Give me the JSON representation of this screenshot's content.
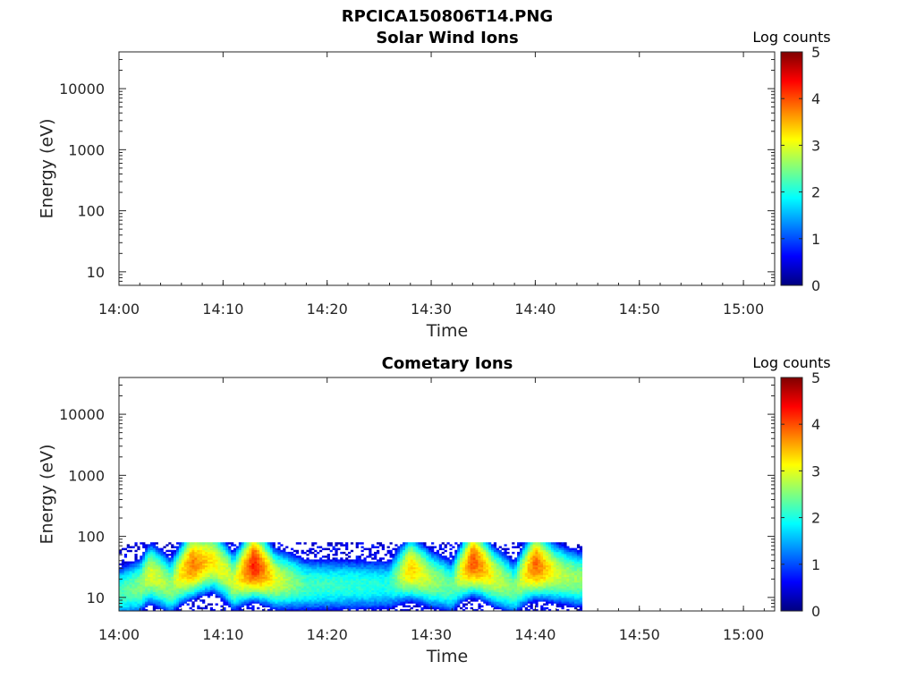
{
  "figure_title": "RPCICA150806T14.PNG",
  "colormap_stops": [
    "#00007f",
    "#0000ff",
    "#007fff",
    "#00ffff",
    "#7fff7f",
    "#ffff00",
    "#ff7f00",
    "#ff0000",
    "#7f0000"
  ],
  "chart_data": [
    {
      "type": "heatmap",
      "title": "Solar Wind Ions",
      "xlabel": "Time",
      "ylabel": "Energy (eV)",
      "yscale": "log",
      "ylim": [
        6,
        40000
      ],
      "xlim": [
        "14:00",
        "15:03"
      ],
      "xticks": [
        "14:00",
        "14:10",
        "14:20",
        "14:30",
        "14:40",
        "14:50",
        "15:00"
      ],
      "yticks": [
        10,
        100,
        1000,
        10000
      ],
      "ytick_labels": [
        "10",
        "100",
        "1000",
        "10000"
      ],
      "colorbar": {
        "label": "Log counts",
        "range": [
          0,
          5
        ],
        "ticks": [
          "0",
          "1",
          "2",
          "3",
          "4",
          "5"
        ]
      },
      "cells": []
    },
    {
      "type": "heatmap",
      "title": "Cometary Ions",
      "xlabel": "Time",
      "ylabel": "Energy (eV)",
      "yscale": "log",
      "ylim": [
        6,
        40000
      ],
      "xlim": [
        "14:00",
        "15:03"
      ],
      "xticks": [
        "14:00",
        "14:10",
        "14:20",
        "14:30",
        "14:40",
        "14:50",
        "15:00"
      ],
      "yticks": [
        10,
        100,
        1000,
        10000
      ],
      "ytick_labels": [
        "10",
        "100",
        "1000",
        "10000"
      ],
      "colorbar": {
        "label": "Log counts",
        "range": [
          0,
          5
        ],
        "ticks": [
          "0",
          "1",
          "2",
          "3",
          "4",
          "5"
        ]
      },
      "data_end": "14:44.5",
      "cells": [
        {
          "t": "14:00",
          "energy_band": [
            6,
            80
          ],
          "peak_energy": 12,
          "peak_log_counts": 2.2
        },
        {
          "t": "14:02",
          "energy_band": [
            6,
            80
          ],
          "peak_energy": 15,
          "peak_log_counts": 2.5
        },
        {
          "t": "14:03",
          "energy_band": [
            6,
            80
          ],
          "peak_energy": 25,
          "peak_log_counts": 3.0
        },
        {
          "t": "14:05",
          "energy_band": [
            6,
            80
          ],
          "peak_energy": 15,
          "peak_log_counts": 2.6
        },
        {
          "t": "14:07",
          "energy_band": [
            6,
            80
          ],
          "peak_energy": 35,
          "peak_log_counts": 3.8
        },
        {
          "t": "14:09",
          "energy_band": [
            6,
            80
          ],
          "peak_energy": 40,
          "peak_log_counts": 3.2
        },
        {
          "t": "14:11",
          "energy_band": [
            6,
            80
          ],
          "peak_energy": 18,
          "peak_log_counts": 2.8
        },
        {
          "t": "14:13",
          "energy_band": [
            6,
            80
          ],
          "peak_energy": 35,
          "peak_log_counts": 4.3
        },
        {
          "t": "14:15",
          "energy_band": [
            6,
            80
          ],
          "peak_energy": 20,
          "peak_log_counts": 3.0
        },
        {
          "t": "14:18",
          "energy_band": [
            6,
            80
          ],
          "peak_energy": 16,
          "peak_log_counts": 2.2
        },
        {
          "t": "14:22",
          "energy_band": [
            6,
            80
          ],
          "peak_energy": 16,
          "peak_log_counts": 2.1
        },
        {
          "t": "14:26",
          "energy_band": [
            6,
            80
          ],
          "peak_energy": 16,
          "peak_log_counts": 2.0
        },
        {
          "t": "14:28",
          "energy_band": [
            6,
            80
          ],
          "peak_energy": 30,
          "peak_log_counts": 3.4
        },
        {
          "t": "14:30",
          "energy_band": [
            6,
            80
          ],
          "peak_energy": 20,
          "peak_log_counts": 2.7
        },
        {
          "t": "14:32",
          "energy_band": [
            6,
            80
          ],
          "peak_energy": 15,
          "peak_log_counts": 2.3
        },
        {
          "t": "14:34",
          "energy_band": [
            6,
            80
          ],
          "peak_energy": 40,
          "peak_log_counts": 4.0
        },
        {
          "t": "14:36",
          "energy_band": [
            6,
            80
          ],
          "peak_energy": 22,
          "peak_log_counts": 3.0
        },
        {
          "t": "14:38",
          "energy_band": [
            6,
            80
          ],
          "peak_energy": 14,
          "peak_log_counts": 2.4
        },
        {
          "t": "14:40",
          "energy_band": [
            6,
            80
          ],
          "peak_energy": 35,
          "peak_log_counts": 3.9
        },
        {
          "t": "14:42",
          "energy_band": [
            6,
            80
          ],
          "peak_energy": 25,
          "peak_log_counts": 2.9
        },
        {
          "t": "14:44",
          "energy_band": [
            6,
            80
          ],
          "peak_energy": 20,
          "peak_log_counts": 2.6
        }
      ]
    }
  ]
}
